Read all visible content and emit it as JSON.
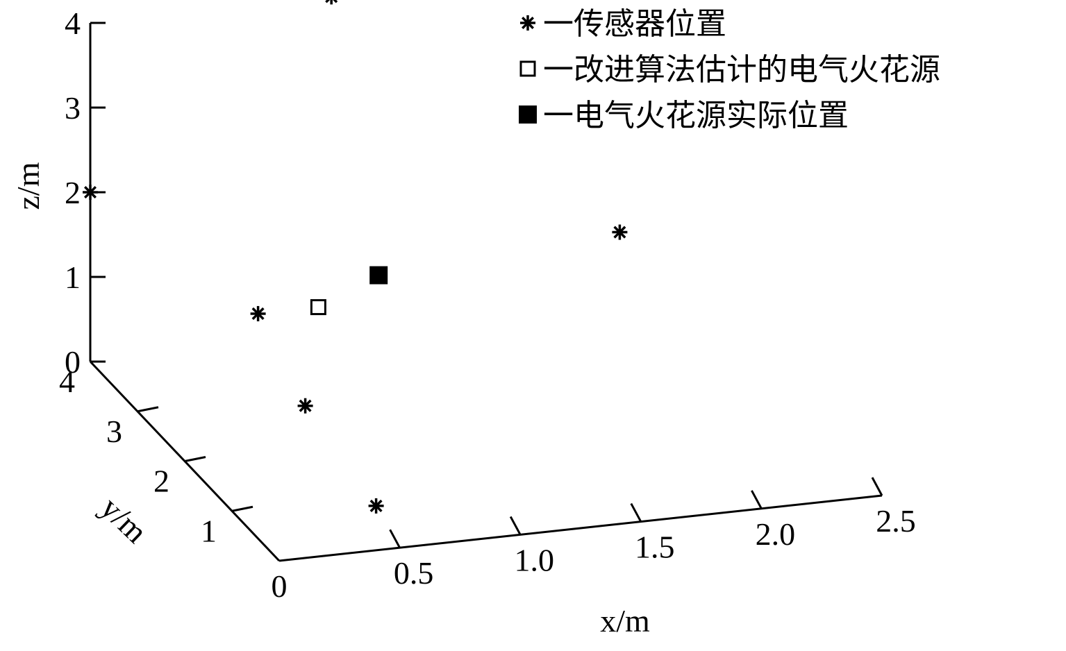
{
  "chart_data": {
    "type": "scatter",
    "projection": "3d",
    "grid": false,
    "legend_placement": "top-right",
    "xlabel": "x/m",
    "ylabel": "y/m",
    "zlabel": "z/m",
    "xlim": [
      0,
      2.5
    ],
    "ylim": [
      0,
      4
    ],
    "zlim": [
      0,
      4
    ],
    "x_ticks": [
      {
        "value": 0,
        "label": "0"
      },
      {
        "value": 0.5,
        "label": "0.5"
      },
      {
        "value": 1.0,
        "label": "1.0"
      },
      {
        "value": 1.5,
        "label": "1.5"
      },
      {
        "value": 2.0,
        "label": "2.0"
      },
      {
        "value": 2.5,
        "label": "2.5"
      }
    ],
    "y_ticks": [
      {
        "value": 1,
        "label": "1"
      },
      {
        "value": 2,
        "label": "2"
      },
      {
        "value": 3,
        "label": "3"
      },
      {
        "value": 4,
        "label": "4"
      }
    ],
    "z_ticks": [
      {
        "value": 0,
        "label": "0"
      },
      {
        "value": 1,
        "label": "1"
      },
      {
        "value": 2,
        "label": "2"
      },
      {
        "value": 3,
        "label": "3"
      },
      {
        "value": 4,
        "label": "4"
      }
    ],
    "series": [
      {
        "name": "一传感器位置",
        "marker": "asterisk",
        "color": "#000000",
        "points": [
          {
            "x": 0.0,
            "y": 4.0,
            "z": 2.0
          },
          {
            "x": 0.5,
            "y": 3.0,
            "z": 1.0
          },
          {
            "x": 0.5,
            "y": 2.0,
            "z": 0.5
          },
          {
            "x": 0.5,
            "y": 0.5,
            "z": 0.2
          },
          {
            "x": 2.0,
            "y": 3.0,
            "z": 1.5
          },
          {
            "x": 1.0,
            "y": 4.0,
            "z": 4.0
          }
        ]
      },
      {
        "name": "一改进算法估计的电气火花源",
        "marker": "square-open",
        "color": "#000000",
        "points": [
          {
            "x": 0.75,
            "y": 3.0,
            "z": 1.0
          }
        ]
      },
      {
        "name": "一电气火花源实际位置",
        "marker": "square-filled",
        "color": "#000000",
        "points": [
          {
            "x": 1.0,
            "y": 3.0,
            "z": 1.3
          }
        ]
      }
    ]
  }
}
